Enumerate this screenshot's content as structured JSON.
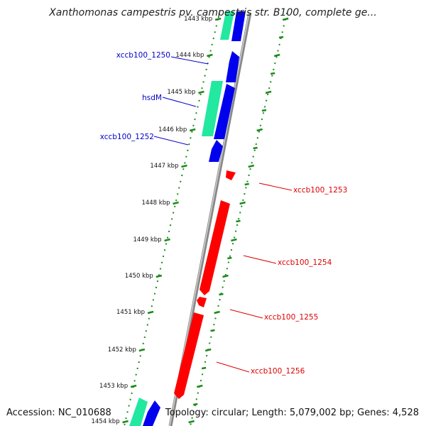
{
  "title": "Xanthomonas campestris pv. campestris str. B100, complete ge...",
  "footer": {
    "accession": "Accession: NC_010688",
    "summary": "Topology: circular; Length: 5,079,002 bp; Genes: 4,528"
  },
  "colors": {
    "forward_cds": "#0000ee",
    "forward_gene": "#22e8a0",
    "reverse_cds": "#ff0000",
    "backbone": "#888888",
    "tick": "#1a8a1a",
    "left_label": "#0000cc",
    "right_label": "#dd0000"
  },
  "ticks": [
    {
      "label": "1443 kbp"
    },
    {
      "label": "1444 kbp"
    },
    {
      "label": "1445 kbp"
    },
    {
      "label": "1446 kbp"
    },
    {
      "label": "1447 kbp"
    },
    {
      "label": "1448 kbp"
    },
    {
      "label": "1449 kbp"
    },
    {
      "label": "1450 kbp"
    },
    {
      "label": "1451 kbp"
    },
    {
      "label": "1452 kbp"
    },
    {
      "label": "1453 kbp"
    },
    {
      "label": "1454 kbp"
    }
  ],
  "left_genes": [
    {
      "name": "xccb100_1250"
    },
    {
      "name": "hsdM"
    },
    {
      "name": "xccb100_1252"
    }
  ],
  "right_genes": [
    {
      "name": "xccb100_1253"
    },
    {
      "name": "xccb100_1254"
    },
    {
      "name": "xccb100_1255"
    },
    {
      "name": "xccb100_1256"
    }
  ]
}
